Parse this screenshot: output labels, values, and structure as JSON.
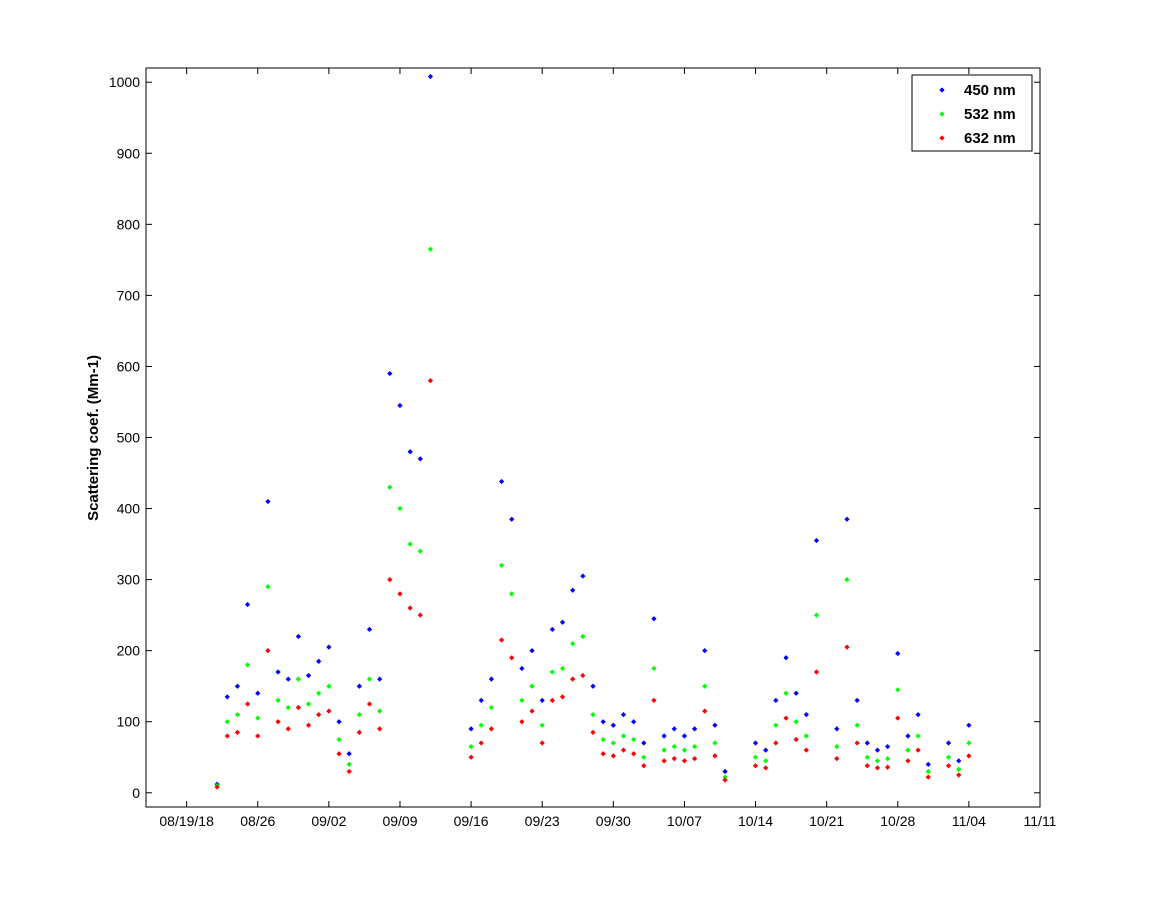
{
  "chart_data": {
    "type": "scatter",
    "title": "",
    "xlabel": "",
    "ylabel": "Scattering coef. (Mm-1)",
    "xlim": [
      "08/15/18",
      "11/11/18"
    ],
    "ylim": [
      -20,
      1020
    ],
    "yticks": [
      "0",
      "100",
      "200",
      "300",
      "400",
      "500",
      "600",
      "700",
      "800",
      "900",
      "1000"
    ],
    "xtick_dates": [
      "08/19/18",
      "08/26/18",
      "09/02/18",
      "09/09/18",
      "09/16/18",
      "09/23/18",
      "09/30/18",
      "10/07/18",
      "10/14/18",
      "10/21/18",
      "10/28/18",
      "11/04/18",
      "11/11/18"
    ],
    "xtick_labels": [
      "08/19/18",
      "08/26",
      "09/02",
      "09/09",
      "09/16",
      "09/23",
      "09/30",
      "10/07",
      "10/14",
      "10/21",
      "10/28",
      "11/04",
      "11/11"
    ],
    "legend_position": "top-right",
    "grid": false,
    "series": [
      {
        "name": "450 nm",
        "color": "#0000ff",
        "points": [
          [
            "08/22/18",
            12
          ],
          [
            "08/23/18",
            135
          ],
          [
            "08/24/18",
            150
          ],
          [
            "08/25/18",
            265
          ],
          [
            "08/26/18",
            140
          ],
          [
            "08/27/18",
            410
          ],
          [
            "08/28/18",
            170
          ],
          [
            "08/29/18",
            160
          ],
          [
            "08/30/18",
            220
          ],
          [
            "08/31/18",
            165
          ],
          [
            "09/01/18",
            185
          ],
          [
            "09/02/18",
            205
          ],
          [
            "09/03/18",
            100
          ],
          [
            "09/04/18",
            55
          ],
          [
            "09/05/18",
            150
          ],
          [
            "09/06/18",
            230
          ],
          [
            "09/07/18",
            160
          ],
          [
            "09/08/18",
            590
          ],
          [
            "09/09/18",
            545
          ],
          [
            "09/10/18",
            480
          ],
          [
            "09/11/18",
            470
          ],
          [
            "09/12/18",
            1008
          ],
          [
            "09/16/18",
            90
          ],
          [
            "09/17/18",
            130
          ],
          [
            "09/18/18",
            160
          ],
          [
            "09/19/18",
            438
          ],
          [
            "09/20/18",
            385
          ],
          [
            "09/21/18",
            175
          ],
          [
            "09/22/18",
            200
          ],
          [
            "09/23/18",
            130
          ],
          [
            "09/24/18",
            230
          ],
          [
            "09/25/18",
            240
          ],
          [
            "09/26/18",
            285
          ],
          [
            "09/27/18",
            305
          ],
          [
            "09/28/18",
            150
          ],
          [
            "09/29/18",
            100
          ],
          [
            "09/30/18",
            95
          ],
          [
            "10/01/18",
            110
          ],
          [
            "10/02/18",
            100
          ],
          [
            "10/03/18",
            70
          ],
          [
            "10/04/18",
            245
          ],
          [
            "10/05/18",
            80
          ],
          [
            "10/06/18",
            90
          ],
          [
            "10/07/18",
            80
          ],
          [
            "10/08/18",
            90
          ],
          [
            "10/09/18",
            200
          ],
          [
            "10/10/18",
            95
          ],
          [
            "10/11/18",
            30
          ],
          [
            "10/14/18",
            70
          ],
          [
            "10/15/18",
            60
          ],
          [
            "10/16/18",
            130
          ],
          [
            "10/17/18",
            190
          ],
          [
            "10/18/18",
            140
          ],
          [
            "10/19/18",
            110
          ],
          [
            "10/20/18",
            355
          ],
          [
            "10/22/18",
            90
          ],
          [
            "10/23/18",
            385
          ],
          [
            "10/24/18",
            130
          ],
          [
            "10/25/18",
            70
          ],
          [
            "10/26/18",
            60
          ],
          [
            "10/27/18",
            65
          ],
          [
            "10/28/18",
            196
          ],
          [
            "10/29/18",
            80
          ],
          [
            "10/30/18",
            110
          ],
          [
            "10/31/18",
            40
          ],
          [
            "11/02/18",
            70
          ],
          [
            "11/03/18",
            45
          ],
          [
            "11/04/18",
            95
          ]
        ]
      },
      {
        "name": "532 nm",
        "color": "#00ff00",
        "points": [
          [
            "08/22/18",
            10
          ],
          [
            "08/23/18",
            100
          ],
          [
            "08/24/18",
            110
          ],
          [
            "08/25/18",
            180
          ],
          [
            "08/26/18",
            105
          ],
          [
            "08/27/18",
            290
          ],
          [
            "08/28/18",
            130
          ],
          [
            "08/29/18",
            120
          ],
          [
            "08/30/18",
            160
          ],
          [
            "08/31/18",
            125
          ],
          [
            "09/01/18",
            140
          ],
          [
            "09/02/18",
            150
          ],
          [
            "09/03/18",
            75
          ],
          [
            "09/04/18",
            40
          ],
          [
            "09/05/18",
            110
          ],
          [
            "09/06/18",
            160
          ],
          [
            "09/07/18",
            115
          ],
          [
            "09/08/18",
            430
          ],
          [
            "09/09/18",
            400
          ],
          [
            "09/10/18",
            350
          ],
          [
            "09/11/18",
            340
          ],
          [
            "09/12/18",
            765
          ],
          [
            "09/16/18",
            65
          ],
          [
            "09/17/18",
            95
          ],
          [
            "09/18/18",
            120
          ],
          [
            "09/19/18",
            320
          ],
          [
            "09/20/18",
            280
          ],
          [
            "09/21/18",
            130
          ],
          [
            "09/22/18",
            150
          ],
          [
            "09/23/18",
            95
          ],
          [
            "09/24/18",
            170
          ],
          [
            "09/25/18",
            175
          ],
          [
            "09/26/18",
            210
          ],
          [
            "09/27/18",
            220
          ],
          [
            "09/28/18",
            110
          ],
          [
            "09/29/18",
            75
          ],
          [
            "09/30/18",
            70
          ],
          [
            "10/01/18",
            80
          ],
          [
            "10/02/18",
            75
          ],
          [
            "10/03/18",
            50
          ],
          [
            "10/04/18",
            175
          ],
          [
            "10/05/18",
            60
          ],
          [
            "10/06/18",
            65
          ],
          [
            "10/07/18",
            60
          ],
          [
            "10/08/18",
            65
          ],
          [
            "10/09/18",
            150
          ],
          [
            "10/10/18",
            70
          ],
          [
            "10/11/18",
            22
          ],
          [
            "10/14/18",
            50
          ],
          [
            "10/15/18",
            45
          ],
          [
            "10/16/18",
            95
          ],
          [
            "10/17/18",
            140
          ],
          [
            "10/18/18",
            100
          ],
          [
            "10/19/18",
            80
          ],
          [
            "10/20/18",
            250
          ],
          [
            "10/22/18",
            65
          ],
          [
            "10/23/18",
            300
          ],
          [
            "10/24/18",
            95
          ],
          [
            "10/25/18",
            50
          ],
          [
            "10/26/18",
            45
          ],
          [
            "10/27/18",
            48
          ],
          [
            "10/28/18",
            145
          ],
          [
            "10/29/18",
            60
          ],
          [
            "10/30/18",
            80
          ],
          [
            "10/31/18",
            30
          ],
          [
            "11/02/18",
            50
          ],
          [
            "11/03/18",
            33
          ],
          [
            "11/04/18",
            70
          ]
        ]
      },
      {
        "name": "632 nm",
        "color": "#ff0000",
        "points": [
          [
            "08/22/18",
            8
          ],
          [
            "08/23/18",
            80
          ],
          [
            "08/24/18",
            85
          ],
          [
            "08/25/18",
            125
          ],
          [
            "08/26/18",
            80
          ],
          [
            "08/27/18",
            200
          ],
          [
            "08/28/18",
            100
          ],
          [
            "08/29/18",
            90
          ],
          [
            "08/30/18",
            120
          ],
          [
            "08/31/18",
            95
          ],
          [
            "09/01/18",
            110
          ],
          [
            "09/02/18",
            115
          ],
          [
            "09/03/18",
            55
          ],
          [
            "09/04/18",
            30
          ],
          [
            "09/05/18",
            85
          ],
          [
            "09/06/18",
            125
          ],
          [
            "09/07/18",
            90
          ],
          [
            "09/08/18",
            300
          ],
          [
            "09/09/18",
            280
          ],
          [
            "09/10/18",
            260
          ],
          [
            "09/11/18",
            250
          ],
          [
            "09/12/18",
            580
          ],
          [
            "09/16/18",
            50
          ],
          [
            "09/17/18",
            70
          ],
          [
            "09/18/18",
            90
          ],
          [
            "09/19/18",
            215
          ],
          [
            "09/20/18",
            190
          ],
          [
            "09/21/18",
            100
          ],
          [
            "09/22/18",
            115
          ],
          [
            "09/23/18",
            70
          ],
          [
            "09/24/18",
            130
          ],
          [
            "09/25/18",
            135
          ],
          [
            "09/26/18",
            160
          ],
          [
            "09/27/18",
            165
          ],
          [
            "09/28/18",
            85
          ],
          [
            "09/29/18",
            55
          ],
          [
            "09/30/18",
            52
          ],
          [
            "10/01/18",
            60
          ],
          [
            "10/02/18",
            55
          ],
          [
            "10/03/18",
            38
          ],
          [
            "10/04/18",
            130
          ],
          [
            "10/05/18",
            45
          ],
          [
            "10/06/18",
            48
          ],
          [
            "10/07/18",
            45
          ],
          [
            "10/08/18",
            48
          ],
          [
            "10/09/18",
            115
          ],
          [
            "10/10/18",
            52
          ],
          [
            "10/11/18",
            18
          ],
          [
            "10/14/18",
            38
          ],
          [
            "10/15/18",
            35
          ],
          [
            "10/16/18",
            70
          ],
          [
            "10/17/18",
            105
          ],
          [
            "10/18/18",
            75
          ],
          [
            "10/19/18",
            60
          ],
          [
            "10/20/18",
            170
          ],
          [
            "10/22/18",
            48
          ],
          [
            "10/23/18",
            205
          ],
          [
            "10/24/18",
            70
          ],
          [
            "10/25/18",
            38
          ],
          [
            "10/26/18",
            35
          ],
          [
            "10/27/18",
            36
          ],
          [
            "10/28/18",
            105
          ],
          [
            "10/29/18",
            45
          ],
          [
            "10/30/18",
            60
          ],
          [
            "10/31/18",
            22
          ],
          [
            "11/02/18",
            38
          ],
          [
            "11/03/18",
            25
          ],
          [
            "11/04/18",
            52
          ]
        ]
      }
    ]
  }
}
